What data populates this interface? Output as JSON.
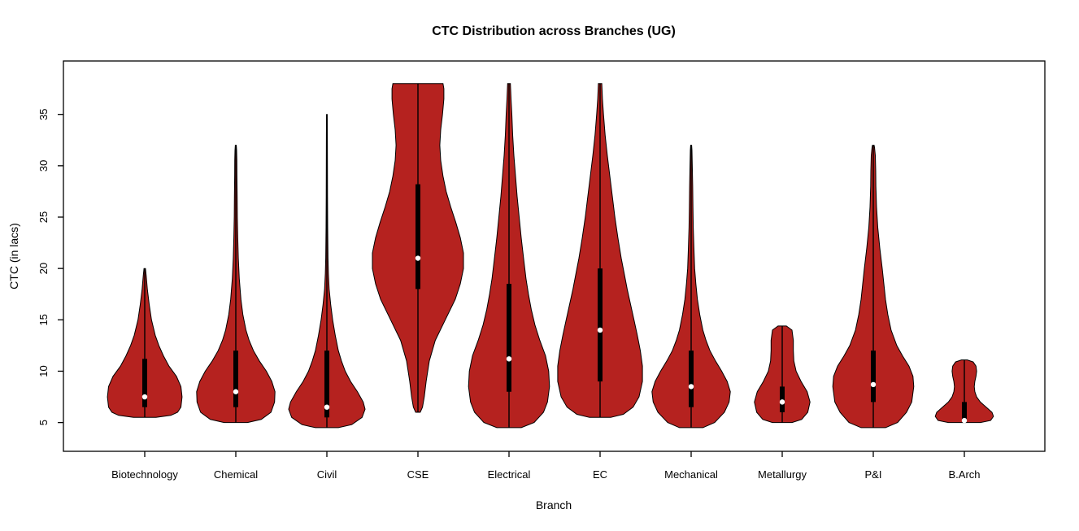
{
  "chart_data": {
    "type": "violin",
    "title": "CTC Distribution across Branches (UG)",
    "xlabel": "Branch",
    "ylabel": "CTC (in lacs)",
    "y_ticks": [
      5,
      10,
      15,
      20,
      25,
      30,
      35
    ],
    "ylim": [
      2.2,
      40.2
    ],
    "fill_color": "#b5221f",
    "outline_color": "#000000",
    "grid": false,
    "legend": "none",
    "categories": [
      "Biotechnology",
      "Chemical",
      "Civil",
      "CSE",
      "Electrical",
      "EC",
      "Mechanical",
      "Metallurgy",
      "P&I",
      "B.Arch"
    ],
    "series": [
      {
        "name": "Biotechnology",
        "stats": {
          "min": 5.5,
          "q1": 6.5,
          "median": 7.5,
          "q3": 11.2,
          "max": 20
        },
        "width_scale": 0.82,
        "profile": [
          [
            5.5,
            0.3
          ],
          [
            5.7,
            0.7
          ],
          [
            6,
            0.88
          ],
          [
            6.5,
            0.97
          ],
          [
            7.5,
            1.0
          ],
          [
            8.5,
            0.97
          ],
          [
            9.5,
            0.85
          ],
          [
            10.5,
            0.65
          ],
          [
            11.5,
            0.5
          ],
          [
            12.5,
            0.38
          ],
          [
            13.5,
            0.28
          ],
          [
            15,
            0.18
          ],
          [
            16.5,
            0.12
          ],
          [
            18,
            0.07
          ],
          [
            19.3,
            0.04
          ],
          [
            20,
            0.02
          ]
        ]
      },
      {
        "name": "Chemical",
        "stats": {
          "min": 5,
          "q1": 6.5,
          "median": 8,
          "q3": 12,
          "max": 32
        },
        "width_scale": 0.86,
        "profile": [
          [
            5,
            0.3
          ],
          [
            5.3,
            0.65
          ],
          [
            6,
            0.9
          ],
          [
            7,
            0.99
          ],
          [
            8,
            1.0
          ],
          [
            9,
            0.92
          ],
          [
            10,
            0.78
          ],
          [
            11,
            0.6
          ],
          [
            12,
            0.45
          ],
          [
            13,
            0.34
          ],
          [
            14,
            0.26
          ],
          [
            15.5,
            0.18
          ],
          [
            17,
            0.13
          ],
          [
            19,
            0.09
          ],
          [
            21,
            0.065
          ],
          [
            23,
            0.05
          ],
          [
            25,
            0.04
          ],
          [
            27,
            0.035
          ],
          [
            29,
            0.03
          ],
          [
            30.5,
            0.028
          ],
          [
            31.5,
            0.02
          ],
          [
            32,
            0.012
          ]
        ]
      },
      {
        "name": "Civil",
        "stats": {
          "min": 4.5,
          "q1": 5.5,
          "median": 6.5,
          "q3": 12,
          "max": 35
        },
        "width_scale": 0.84,
        "profile": [
          [
            4.5,
            0.3
          ],
          [
            4.8,
            0.65
          ],
          [
            5.5,
            0.92
          ],
          [
            6.3,
            1.0
          ],
          [
            7,
            0.95
          ],
          [
            8,
            0.8
          ],
          [
            9,
            0.62
          ],
          [
            10,
            0.48
          ],
          [
            11,
            0.38
          ],
          [
            12,
            0.3
          ],
          [
            13.5,
            0.22
          ],
          [
            15,
            0.15
          ],
          [
            16.5,
            0.1
          ],
          [
            18,
            0.06
          ],
          [
            19.5,
            0.04
          ],
          [
            21,
            0.03
          ],
          [
            24,
            0.022
          ],
          [
            27,
            0.018
          ],
          [
            30,
            0.015
          ],
          [
            33,
            0.012
          ],
          [
            34.5,
            0.01
          ],
          [
            35,
            0.008
          ]
        ]
      },
      {
        "name": "CSE",
        "stats": {
          "min": 6,
          "q1": 18,
          "median": 21,
          "q3": 28.2,
          "max": 38
        },
        "width_scale": 1.0,
        "profile": [
          [
            6,
            0.05
          ],
          [
            6.5,
            0.1
          ],
          [
            7.5,
            0.14
          ],
          [
            9,
            0.18
          ],
          [
            11,
            0.25
          ],
          [
            13,
            0.38
          ],
          [
            15,
            0.6
          ],
          [
            17,
            0.82
          ],
          [
            18.5,
            0.93
          ],
          [
            20,
            1.0
          ],
          [
            21.5,
            1.0
          ],
          [
            23,
            0.93
          ],
          [
            24.5,
            0.83
          ],
          [
            26,
            0.72
          ],
          [
            27.5,
            0.62
          ],
          [
            29,
            0.55
          ],
          [
            30.5,
            0.5
          ],
          [
            32,
            0.48
          ],
          [
            33.5,
            0.5
          ],
          [
            35,
            0.54
          ],
          [
            36.5,
            0.57
          ],
          [
            37.5,
            0.57
          ],
          [
            38,
            0.55
          ]
        ]
      },
      {
        "name": "Electrical",
        "stats": {
          "min": 4.5,
          "q1": 8,
          "median": 11.2,
          "q3": 18.5,
          "max": 38
        },
        "width_scale": 0.89,
        "profile": [
          [
            4.5,
            0.3
          ],
          [
            5,
            0.62
          ],
          [
            6,
            0.85
          ],
          [
            7,
            0.95
          ],
          [
            8.5,
            1.0
          ],
          [
            10,
            0.98
          ],
          [
            11.5,
            0.9
          ],
          [
            13,
            0.76
          ],
          [
            14.5,
            0.64
          ],
          [
            16,
            0.55
          ],
          [
            17.5,
            0.48
          ],
          [
            19,
            0.42
          ],
          [
            21,
            0.36
          ],
          [
            23,
            0.3
          ],
          [
            25,
            0.25
          ],
          [
            27,
            0.2
          ],
          [
            29,
            0.16
          ],
          [
            31,
            0.12
          ],
          [
            33,
            0.09
          ],
          [
            35,
            0.07
          ],
          [
            36.5,
            0.05
          ],
          [
            38,
            0.035
          ]
        ]
      },
      {
        "name": "EC",
        "stats": {
          "min": 5.5,
          "q1": 9,
          "median": 14,
          "q3": 20,
          "max": 38
        },
        "width_scale": 0.93,
        "profile": [
          [
            5.5,
            0.25
          ],
          [
            5.8,
            0.55
          ],
          [
            6.5,
            0.78
          ],
          [
            7.5,
            0.92
          ],
          [
            9,
            1.0
          ],
          [
            10.5,
            1.0
          ],
          [
            12,
            0.95
          ],
          [
            13.5,
            0.88
          ],
          [
            15,
            0.8
          ],
          [
            16.5,
            0.72
          ],
          [
            18,
            0.64
          ],
          [
            19.5,
            0.57
          ],
          [
            21,
            0.5
          ],
          [
            23,
            0.42
          ],
          [
            25,
            0.35
          ],
          [
            27,
            0.29
          ],
          [
            29,
            0.23
          ],
          [
            31,
            0.17
          ],
          [
            33,
            0.12
          ],
          [
            35,
            0.08
          ],
          [
            36.5,
            0.055
          ],
          [
            38,
            0.04
          ]
        ]
      },
      {
        "name": "Mechanical",
        "stats": {
          "min": 4.5,
          "q1": 6.5,
          "median": 8.5,
          "q3": 12,
          "max": 32
        },
        "width_scale": 0.86,
        "profile": [
          [
            4.5,
            0.3
          ],
          [
            5,
            0.6
          ],
          [
            6,
            0.85
          ],
          [
            7,
            0.97
          ],
          [
            8,
            1.0
          ],
          [
            9,
            0.92
          ],
          [
            10,
            0.78
          ],
          [
            11,
            0.62
          ],
          [
            12,
            0.48
          ],
          [
            13,
            0.38
          ],
          [
            14,
            0.3
          ],
          [
            15.5,
            0.22
          ],
          [
            17,
            0.16
          ],
          [
            18.5,
            0.12
          ],
          [
            20,
            0.09
          ],
          [
            22,
            0.07
          ],
          [
            24,
            0.055
          ],
          [
            26,
            0.045
          ],
          [
            28,
            0.04
          ],
          [
            30,
            0.03
          ],
          [
            31.5,
            0.02
          ],
          [
            32,
            0.012
          ]
        ]
      },
      {
        "name": "Metallurgy",
        "stats": {
          "min": 5,
          "q1": 6,
          "median": 7,
          "q3": 8.5,
          "max": 14.4
        },
        "width_scale": 0.61,
        "profile": [
          [
            5,
            0.35
          ],
          [
            5.3,
            0.7
          ],
          [
            6,
            0.92
          ],
          [
            7,
            1.0
          ],
          [
            8,
            0.9
          ],
          [
            9,
            0.68
          ],
          [
            10,
            0.5
          ],
          [
            11,
            0.42
          ],
          [
            12,
            0.4
          ],
          [
            13,
            0.4
          ],
          [
            14,
            0.35
          ],
          [
            14.4,
            0.15
          ]
        ]
      },
      {
        "name": "P&I",
        "stats": {
          "min": 4.5,
          "q1": 7,
          "median": 8.7,
          "q3": 12,
          "max": 32
        },
        "width_scale": 0.89,
        "profile": [
          [
            4.5,
            0.3
          ],
          [
            5,
            0.6
          ],
          [
            6,
            0.82
          ],
          [
            7,
            0.95
          ],
          [
            8.5,
            1.0
          ],
          [
            9.5,
            0.98
          ],
          [
            10.5,
            0.88
          ],
          [
            11.5,
            0.72
          ],
          [
            12.5,
            0.58
          ],
          [
            14,
            0.44
          ],
          [
            15.5,
            0.36
          ],
          [
            17,
            0.3
          ],
          [
            18.5,
            0.26
          ],
          [
            20,
            0.22
          ],
          [
            22,
            0.16
          ],
          [
            24,
            0.11
          ],
          [
            26,
            0.08
          ],
          [
            28,
            0.065
          ],
          [
            29.5,
            0.06
          ],
          [
            31,
            0.05
          ],
          [
            31.8,
            0.03
          ],
          [
            32,
            0.02
          ]
        ]
      },
      {
        "name": "B.Arch",
        "stats": {
          "min": 5,
          "q1": 5,
          "median": 5.2,
          "q3": 7,
          "max": 11.1
        },
        "width_scale": 0.64,
        "profile": [
          [
            5,
            0.55
          ],
          [
            5.2,
            0.9
          ],
          [
            5.6,
            1.0
          ],
          [
            6,
            0.95
          ],
          [
            6.5,
            0.75
          ],
          [
            7,
            0.55
          ],
          [
            7.5,
            0.42
          ],
          [
            8,
            0.36
          ],
          [
            8.5,
            0.34
          ],
          [
            9,
            0.36
          ],
          [
            9.5,
            0.4
          ],
          [
            10,
            0.42
          ],
          [
            10.5,
            0.4
          ],
          [
            10.9,
            0.3
          ],
          [
            11.1,
            0.1
          ]
        ]
      }
    ]
  }
}
